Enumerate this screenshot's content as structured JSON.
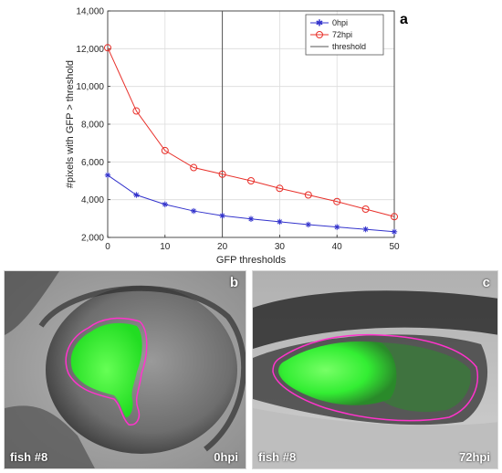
{
  "chart_data": {
    "type": "line",
    "title": "",
    "panel_label": "a",
    "xlabel": "GFP thresholds",
    "ylabel": "#pixels with GFP > threshold",
    "xlim": [
      0,
      50
    ],
    "ylim": [
      2000,
      14000
    ],
    "xticks": [
      "0",
      "10",
      "20",
      "30",
      "40",
      "50"
    ],
    "yticks": [
      "2,000",
      "4,000",
      "6,000",
      "8,000",
      "10,000",
      "12,000",
      "14,000"
    ],
    "grid": true,
    "legend_position": "top-right",
    "threshold_x": 20,
    "x": [
      0,
      5,
      10,
      15,
      20,
      25,
      30,
      35,
      40,
      45,
      50
    ],
    "series": [
      {
        "name": "0hpi",
        "color": "#3333cc",
        "marker": "asterisk",
        "values": [
          5300,
          4250,
          3750,
          3400,
          3150,
          2980,
          2830,
          2680,
          2550,
          2430,
          2300
        ]
      },
      {
        "name": "72hpi",
        "color": "#e8302a",
        "marker": "circle",
        "values": [
          12050,
          8700,
          6600,
          5700,
          5350,
          5000,
          4600,
          4250,
          3900,
          3500,
          3100
        ]
      }
    ],
    "threshold_legend": "threshold",
    "threshold_color": "#555555"
  },
  "panels": {
    "b": {
      "letter": "b",
      "fish": "fish #8",
      "time": "0hpi"
    },
    "c": {
      "letter": "c",
      "fish": "fish #8",
      "time": "72hpi"
    }
  },
  "colors": {
    "gfp": "#33ff33",
    "outline": "#ff33cc"
  }
}
